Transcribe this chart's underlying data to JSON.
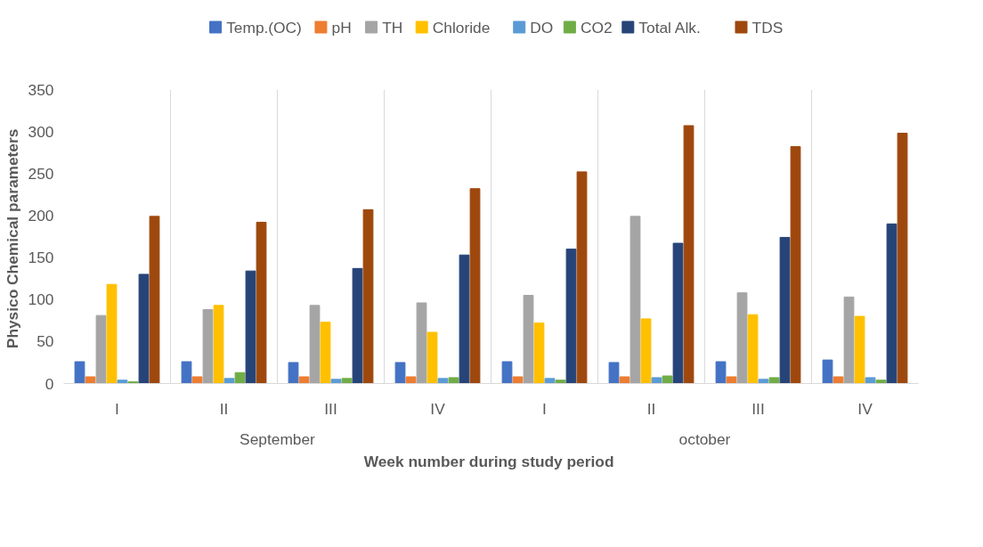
{
  "chart_data": {
    "type": "bar",
    "xlabel": "Week number  during study period",
    "ylabel": "Physico  Chemical parameters",
    "categories": [
      "I",
      "II",
      "III",
      "IV",
      "I",
      "II",
      "III",
      "IV"
    ],
    "annotations": [
      "September",
      "october"
    ],
    "series": [
      {
        "name": "Temp.(OC)",
        "color": "#4472c4",
        "values": [
          26,
          26,
          25,
          25,
          26,
          25,
          26,
          28
        ]
      },
      {
        "name": "pH",
        "color": "#ed7d31",
        "values": [
          8,
          8,
          8,
          8,
          8,
          8,
          8,
          8
        ]
      },
      {
        "name": "TH",
        "color": "#a5a5a5",
        "values": [
          81,
          88,
          93,
          96,
          105,
          199,
          108,
          103
        ]
      },
      {
        "name": "Chloride",
        "color": "#ffc000",
        "values": [
          118,
          93,
          73,
          61,
          72,
          77,
          82,
          80
        ]
      },
      {
        "name": "DO",
        "color": "#5b9bd5",
        "values": [
          4,
          6,
          5,
          6,
          6,
          7,
          5,
          7
        ]
      },
      {
        "name": "CO2",
        "color": "#70ad47",
        "values": [
          2,
          13,
          6,
          7,
          4,
          9,
          7,
          4
        ]
      },
      {
        "name": "Total Alk.",
        "color": "#264478",
        "values": [
          130,
          134,
          137,
          153,
          160,
          167,
          174,
          190
        ]
      },
      {
        "name": "TDS",
        "color": "#9e480e",
        "values": [
          199,
          192,
          207,
          232,
          252,
          307,
          282,
          298
        ]
      }
    ],
    "ylim": [
      0,
      350
    ],
    "yticks": [
      0,
      50,
      100,
      150,
      200,
      250,
      300,
      350
    ],
    "grid": "x",
    "legend": "top"
  }
}
